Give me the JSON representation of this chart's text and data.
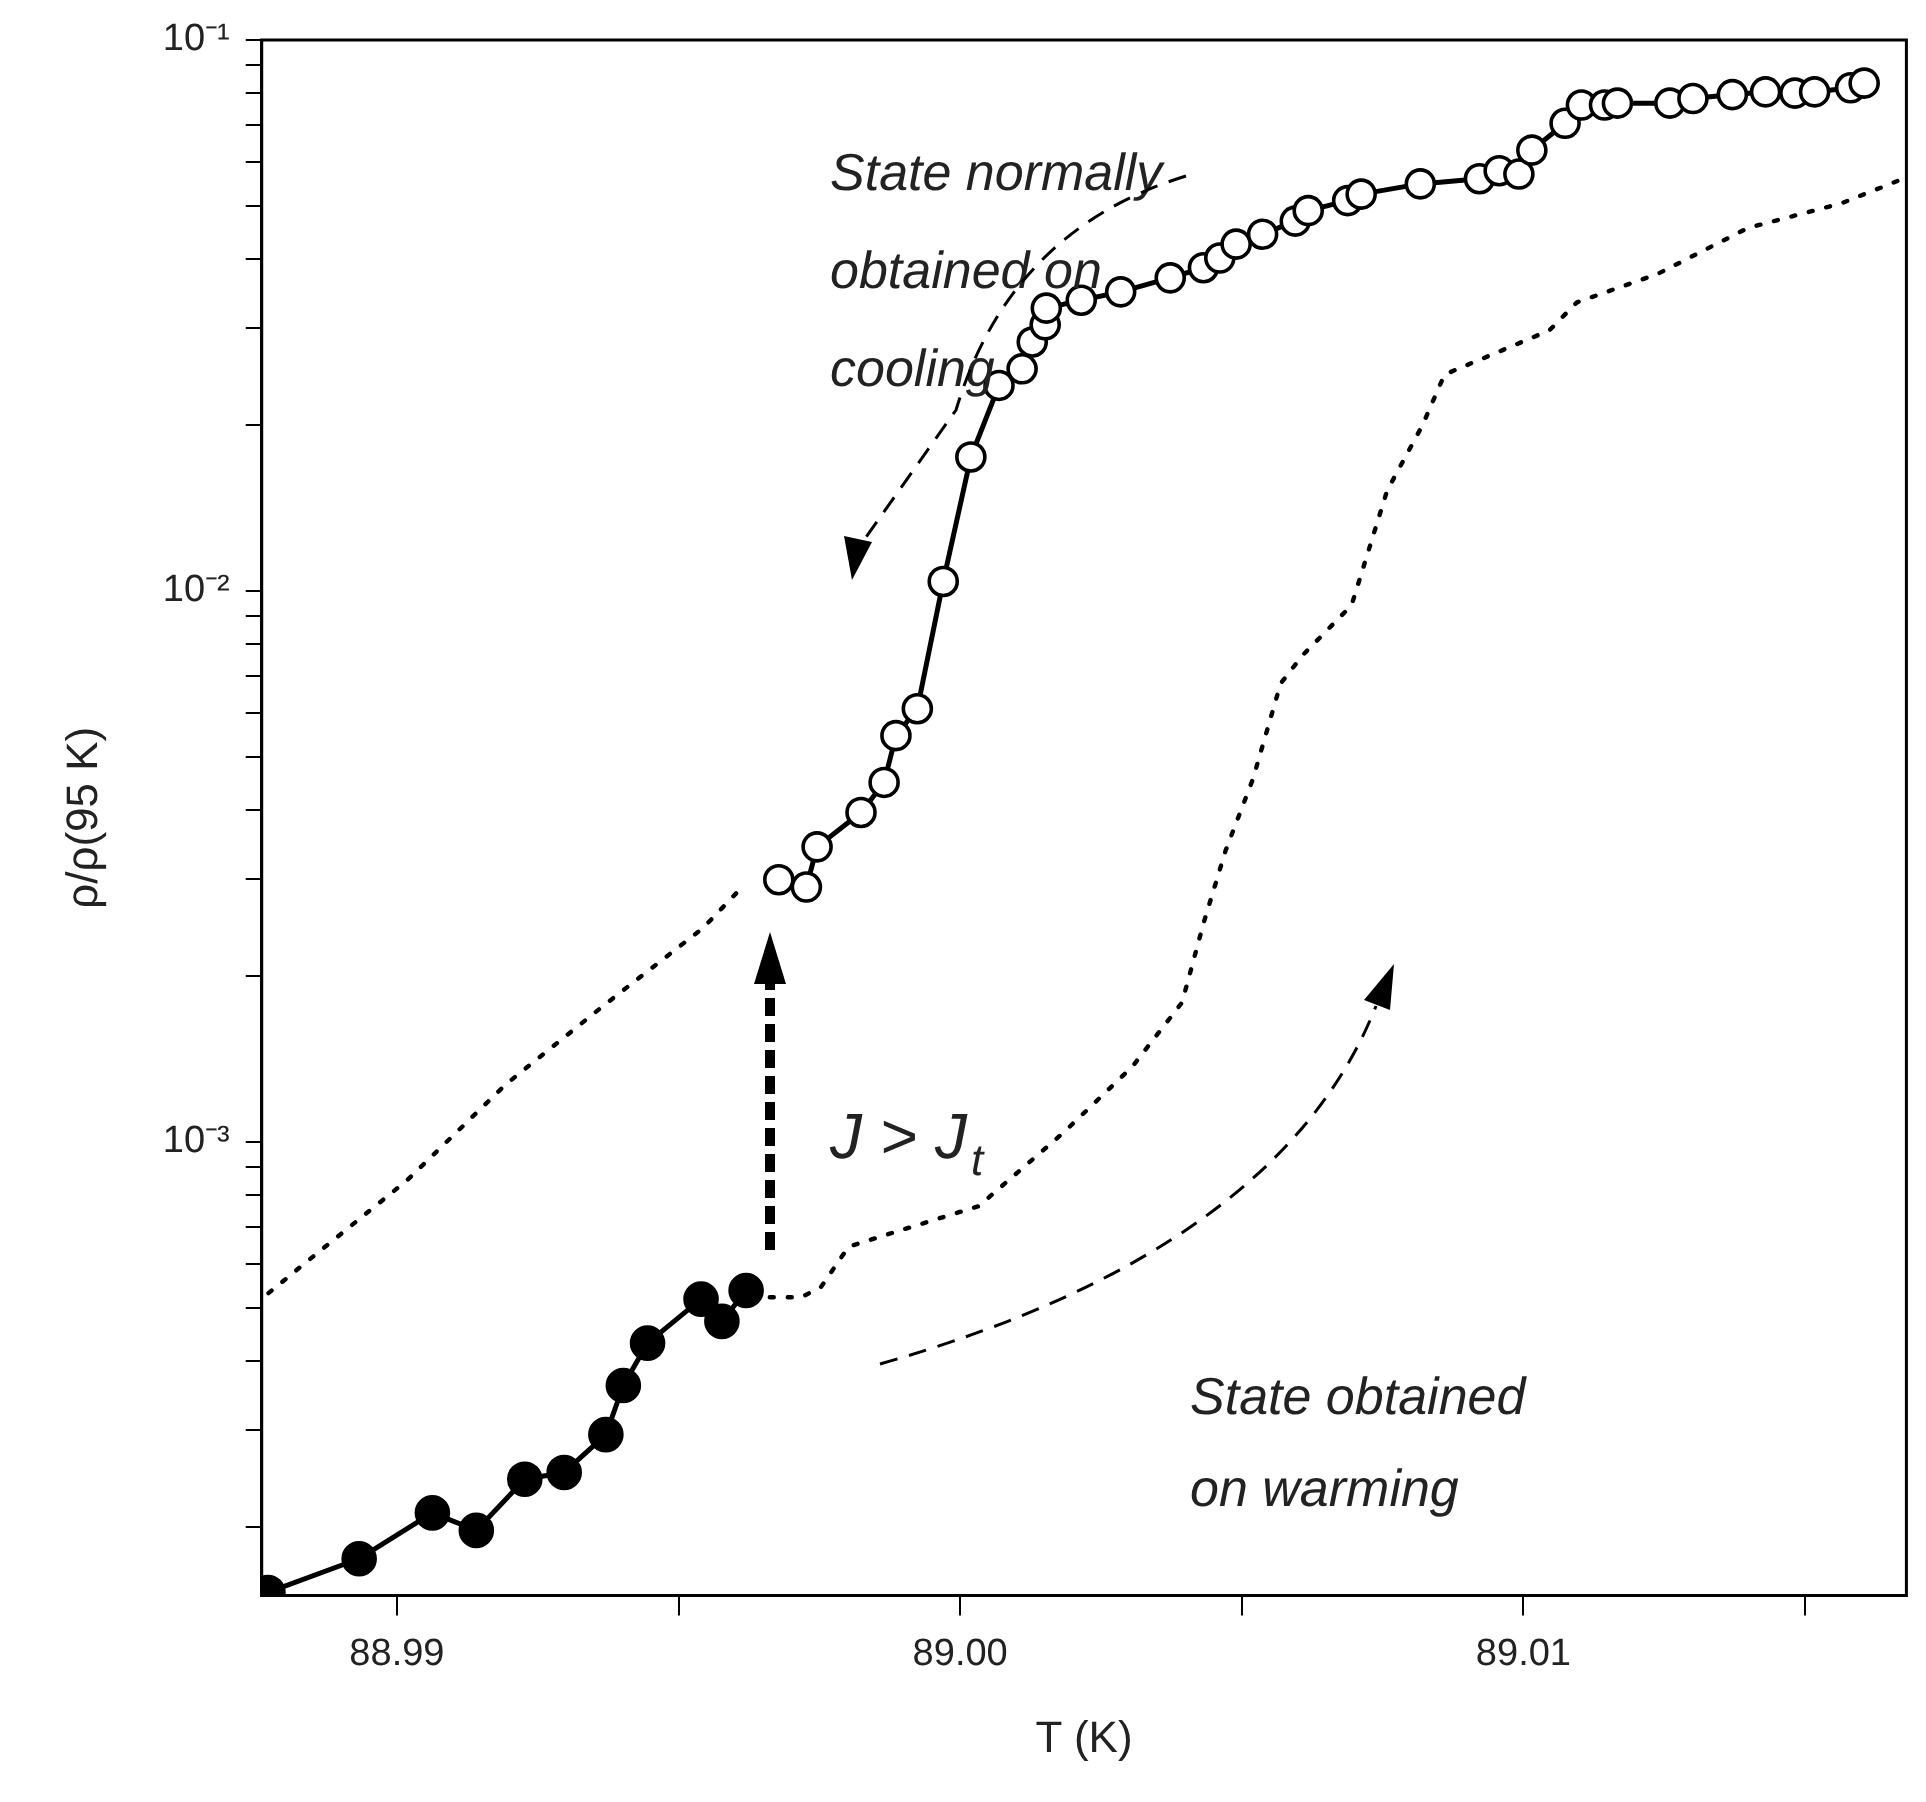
{
  "chart_data": {
    "type": "line",
    "xlabel": "T (K)",
    "ylabel": "ρ/ρ(95 K)",
    "xlim": [
      88.9876,
      89.0168
    ],
    "ylim": [
      0.00015,
      0.1
    ],
    "xticks": [
      88.99,
      {
        "value": 88.995,
        "label": null
      },
      {
        "value": 89,
        "label": "89.00"
      },
      {
        "value": 89.005,
        "label": null
      },
      89.01,
      {
        "value": 89.015,
        "label": null
      }
    ],
    "yticks": [
      {
        "value": 0.0002,
        "label": null
      },
      {
        "value": 0.0003,
        "label": null
      },
      {
        "value": 0.0004,
        "label": null
      },
      {
        "value": 0.0005,
        "label": null
      },
      {
        "value": 0.0006,
        "label": null
      },
      {
        "value": 0.0007,
        "label": null
      },
      {
        "value": 0.0008,
        "label": null
      },
      {
        "value": 0.0009,
        "label": null
      },
      {
        "value": 0.001,
        "label": "10⁻³"
      },
      {
        "value": 0.002,
        "label": null
      },
      {
        "value": 0.003,
        "label": null
      },
      {
        "value": 0.004,
        "label": null
      },
      {
        "value": 0.005,
        "label": null
      },
      {
        "value": 0.006,
        "label": null
      },
      {
        "value": 0.007,
        "label": null
      },
      {
        "value": 0.008,
        "label": null
      },
      {
        "value": 0.009,
        "label": null
      },
      {
        "value": 0.01,
        "label": "10⁻²"
      },
      {
        "value": 0.02,
        "label": null
      },
      {
        "value": 0.03,
        "label": null
      },
      {
        "value": 0.04,
        "label": null
      },
      {
        "value": 0.05,
        "label": null
      },
      {
        "value": 0.06,
        "label": null
      },
      {
        "value": 0.07,
        "label": null
      },
      {
        "value": 0.08,
        "label": null
      },
      {
        "value": 0.09,
        "label": null
      },
      {
        "value": 0.1,
        "label": "10⁻¹"
      }
    ],
    "log": "y",
    "grid": false,
    "legend": false,
    "annotations": [
      "State normally obtained on cooling",
      "J > J$_{t}$",
      "State obtained on warming"
    ],
    "series": [
      {
        "color": "#000000",
        "marker": "circle",
        "line_style": "solid",
        "x": [
          88.98771,
          88.98933,
          88.99063,
          88.99141,
          88.99227,
          88.99297,
          88.99371,
          88.99402,
          88.99445,
          88.9954,
          88.99577,
          88.9962
        ],
        "values": [
          0.000152,
          0.000175,
          0.000212,
          0.000197,
          0.000244,
          0.000251,
          0.000294,
          0.000361,
          0.000431,
          0.000518,
          0.000472,
          0.000537
        ]
      },
      {
        "color": "#000000",
        "marker": "circle",
        "line_style": "solid",
        "x": [
          88.99678,
          88.99727,
          88.99746,
          88.99824,
          88.99865,
          88.99886,
          88.99924,
          88.9997,
          89.00019,
          89.00069,
          89.0011,
          89.00128,
          89.00151,
          89.00153,
          89.00215,
          89.00285,
          89.00373,
          89.00432,
          89.00461,
          89.0049,
          89.00537,
          89.00595,
          89.00618,
          89.00688,
          89.00712,
          89.00817,
          89.00922,
          89.00957,
          89.00992,
          89.01015,
          89.01074,
          89.01103,
          89.01144,
          89.01167,
          89.0126,
          89.01301,
          89.01371,
          89.0143,
          89.01482,
          89.01517,
          89.01581,
          89.01605
        ],
        "values": [
          0.00299,
          0.0029,
          0.00343,
          0.00396,
          0.00449,
          0.00546,
          0.00611,
          0.0104,
          0.0175,
          0.0236,
          0.0253,
          0.0283,
          0.0304,
          0.0326,
          0.0337,
          0.0349,
          0.037,
          0.0386,
          0.0402,
          0.0426,
          0.0444,
          0.0469,
          0.049,
          0.0511,
          0.0525,
          0.0548,
          0.056,
          0.0579,
          0.0571,
          0.0631,
          0.0706,
          0.0762,
          0.0762,
          0.0768,
          0.0768,
          0.0783,
          0.0796,
          0.0805,
          0.0801,
          0.0805,
          0.0819,
          0.0835
        ]
      },
      {
        "color": "#000000",
        "marker": "none",
        "line_style": "dotted",
        "x": [
          88.98772,
          88.98842,
          88.99018,
          88.99193,
          88.99368,
          88.99543,
          88.99613
        ],
        "values": [
          0.000531,
          0.000608,
          0.000851,
          0.00127,
          0.00177,
          0.00244,
          0.0029
        ]
      },
      {
        "color": "#000000",
        "marker": "none",
        "line_style": "dotted",
        "x": [
          88.99662,
          88.99718,
          88.99753,
          88.99802,
          88.99893,
          89.00033,
          89.00184,
          89.00306,
          89.00394,
          89.00433,
          89.00471,
          89.0052,
          89.00569,
          89.00608,
          89.00695,
          89.00758,
          89.00821,
          89.0086,
          89.01046,
          89.01095,
          89.01238,
          89.01399,
          89.01564,
          89.0168
        ],
        "values": [
          0.000522,
          0.000522,
          0.000545,
          0.000645,
          0.00069,
          0.000764,
          0.00104,
          0.00137,
          0.00179,
          0.00251,
          0.00337,
          0.00456,
          0.00679,
          0.00764,
          0.00942,
          0.0152,
          0.02,
          0.0247,
          0.0297,
          0.0334,
          0.0376,
          0.0456,
          0.0505,
          0.0563
        ]
      }
    ]
  }
}
